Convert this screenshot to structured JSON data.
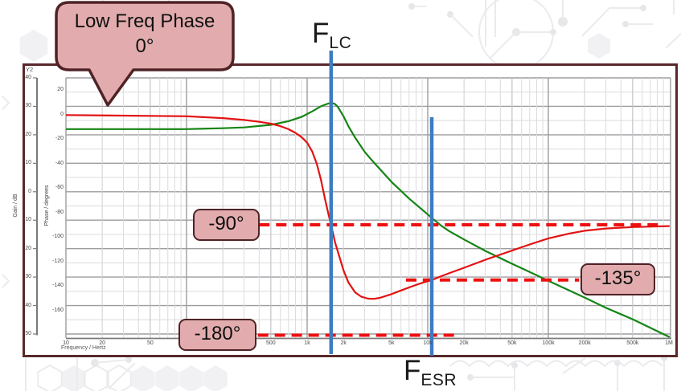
{
  "annotations": {
    "callout": {
      "line1": "Low Freq Phase",
      "line2": "0°"
    },
    "flc": {
      "main": "F",
      "sub": "LC"
    },
    "fesr": {
      "main": "F",
      "sub": "ESR"
    },
    "phase_boxes": {
      "minus90": "-90°",
      "minus135": "-135°",
      "minus180": "-180°"
    }
  },
  "chart_data": {
    "type": "line",
    "x_scale": "log",
    "x_range_hz": [
      10,
      1000000
    ],
    "grid": true,
    "axes": {
      "y2_label": "Y2",
      "gain_axis_label": "Gain / dB",
      "phase_axis_label": "Phase / degrees",
      "x_axis_label": "Frequency / Hertz",
      "gain_ticks": [
        40,
        30,
        20,
        10,
        0,
        -10,
        -20,
        -30,
        -40,
        -50
      ],
      "phase_ticks": [
        20,
        0,
        -20,
        -40,
        -60,
        -80,
        -100,
        -120,
        -140,
        -160
      ],
      "freq_tick_labels": [
        "10",
        "20",
        "50",
        "100",
        "200",
        "500",
        "1k",
        "2k",
        "5k",
        "10k",
        "20k",
        "50k",
        "100k",
        "200k",
        "500k",
        "1M"
      ],
      "gain_range_db": [
        -50,
        40
      ],
      "phase_range_deg": [
        -180,
        20
      ]
    },
    "series": [
      {
        "name": "gain",
        "axis": "gain_db",
        "color": "#158515",
        "points": [
          [
            10,
            22
          ],
          [
            100,
            22
          ],
          [
            200,
            22.3
          ],
          [
            300,
            22.6
          ],
          [
            500,
            23.5
          ],
          [
            700,
            24.8
          ],
          [
            900,
            26.3
          ],
          [
            1100,
            28.2
          ],
          [
            1300,
            30
          ],
          [
            1500,
            31
          ],
          [
            1600,
            31.2
          ],
          [
            1700,
            30.8
          ],
          [
            1800,
            29.8
          ],
          [
            2000,
            26.5
          ],
          [
            2200,
            23
          ],
          [
            2500,
            19
          ],
          [
            3000,
            14
          ],
          [
            3500,
            10.7
          ],
          [
            4000,
            8
          ],
          [
            5000,
            3.5
          ],
          [
            6000,
            0.3
          ],
          [
            7000,
            -2.4
          ],
          [
            8000,
            -4.5
          ],
          [
            10000,
            -8
          ],
          [
            11000,
            -9.5
          ],
          [
            13000,
            -12
          ],
          [
            15000,
            -13.8
          ],
          [
            20000,
            -16.8
          ],
          [
            30000,
            -20.8
          ],
          [
            50000,
            -25.3
          ],
          [
            70000,
            -28.2
          ],
          [
            100000,
            -31.3
          ],
          [
            200000,
            -37.2
          ],
          [
            300000,
            -40.8
          ],
          [
            500000,
            -44.8
          ],
          [
            700000,
            -47.8
          ],
          [
            1000000,
            -51
          ]
        ]
      },
      {
        "name": "phase",
        "axis": "phase_deg",
        "color": "#e31212",
        "points": [
          [
            10,
            -0.5
          ],
          [
            100,
            -1.5
          ],
          [
            200,
            -3
          ],
          [
            300,
            -4.5
          ],
          [
            400,
            -6
          ],
          [
            500,
            -7.5
          ],
          [
            600,
            -9.5
          ],
          [
            700,
            -12
          ],
          [
            800,
            -15
          ],
          [
            900,
            -18.5
          ],
          [
            1000,
            -23
          ],
          [
            1100,
            -30
          ],
          [
            1200,
            -40
          ],
          [
            1300,
            -53
          ],
          [
            1400,
            -68
          ],
          [
            1500,
            -81
          ],
          [
            1580,
            -90
          ],
          [
            1700,
            -104
          ],
          [
            1800,
            -112
          ],
          [
            2000,
            -127
          ],
          [
            2200,
            -137
          ],
          [
            2500,
            -145
          ],
          [
            2800,
            -148.5
          ],
          [
            3200,
            -150.2
          ],
          [
            3600,
            -150.3
          ],
          [
            4000,
            -149.5
          ],
          [
            5000,
            -146.5
          ],
          [
            6000,
            -143.5
          ],
          [
            7000,
            -141
          ],
          [
            8000,
            -139
          ],
          [
            9000,
            -137.3
          ],
          [
            10800,
            -135
          ],
          [
            13000,
            -131.8
          ],
          [
            15000,
            -129.5
          ],
          [
            20000,
            -125
          ],
          [
            30000,
            -118.5
          ],
          [
            50000,
            -111
          ],
          [
            70000,
            -106
          ],
          [
            100000,
            -101
          ],
          [
            150000,
            -97
          ],
          [
            200000,
            -94.8
          ],
          [
            300000,
            -93
          ],
          [
            500000,
            -91.8
          ],
          [
            1000000,
            -91
          ]
        ]
      }
    ],
    "markers": {
      "f_lc_hz": 1580,
      "f_esr_hz": 10800,
      "marker_color": "#3e7cc1",
      "dashed_color": "#ee0f0f",
      "dashed_lines": [
        {
          "phase_deg": -90,
          "from_hz": 400,
          "to_hz": 850000
        },
        {
          "phase_deg": -135,
          "from_hz": 6600,
          "to_hz": 180000
        },
        {
          "phase_deg": -180,
          "from_hz": 390,
          "to_hz": 18500
        }
      ]
    }
  },
  "colors": {
    "callout_fill": "#e2acae",
    "callout_border": "#4f2326",
    "frame_border": "#5a282b",
    "grid_major": "#9d9da0",
    "grid_minor": "#dcdcdf"
  }
}
